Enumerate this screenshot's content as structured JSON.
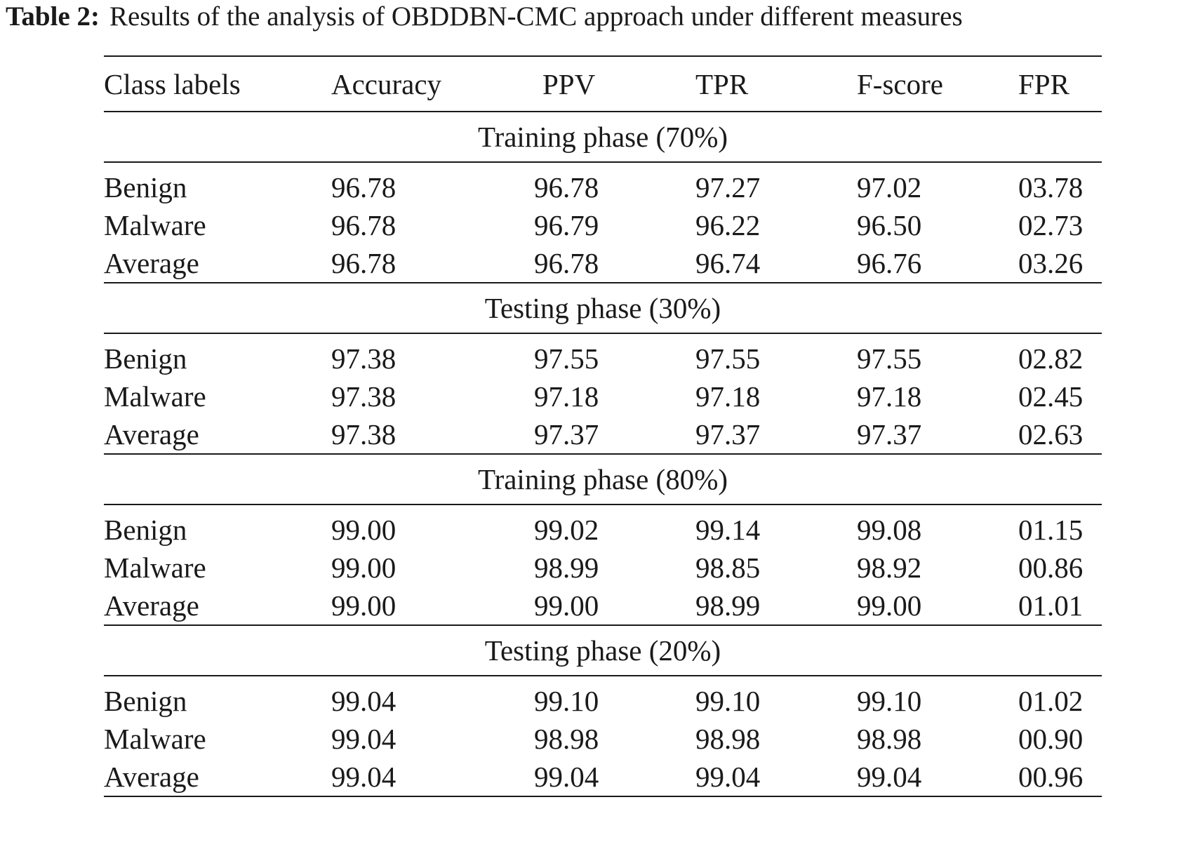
{
  "caption": {
    "label": "Table 2:",
    "text": "Results of the analysis of OBDDBN-CMC approach under different measures"
  },
  "table": {
    "headers": [
      "Class labels",
      "Accuracy",
      "PPV",
      "TPR",
      "F-score",
      "FPR"
    ],
    "sections": [
      {
        "title": "Training phase (70%)",
        "rows": [
          {
            "label": "Benign",
            "accuracy": "96.78",
            "ppv": "96.78",
            "tpr": "97.27",
            "fscore": "97.02",
            "fpr": "03.78"
          },
          {
            "label": "Malware",
            "accuracy": "96.78",
            "ppv": "96.79",
            "tpr": "96.22",
            "fscore": "96.50",
            "fpr": "02.73"
          },
          {
            "label": "Average",
            "accuracy": "96.78",
            "ppv": "96.78",
            "tpr": "96.74",
            "fscore": "96.76",
            "fpr": "03.26"
          }
        ]
      },
      {
        "title": "Testing phase (30%)",
        "rows": [
          {
            "label": "Benign",
            "accuracy": "97.38",
            "ppv": "97.55",
            "tpr": "97.55",
            "fscore": "97.55",
            "fpr": "02.82"
          },
          {
            "label": "Malware",
            "accuracy": "97.38",
            "ppv": "97.18",
            "tpr": "97.18",
            "fscore": "97.18",
            "fpr": "02.45"
          },
          {
            "label": "Average",
            "accuracy": "97.38",
            "ppv": "97.37",
            "tpr": "97.37",
            "fscore": "97.37",
            "fpr": "02.63"
          }
        ]
      },
      {
        "title": "Training phase (80%)",
        "rows": [
          {
            "label": "Benign",
            "accuracy": "99.00",
            "ppv": "99.02",
            "tpr": "99.14",
            "fscore": "99.08",
            "fpr": "01.15"
          },
          {
            "label": "Malware",
            "accuracy": "99.00",
            "ppv": "98.99",
            "tpr": "98.85",
            "fscore": "98.92",
            "fpr": "00.86"
          },
          {
            "label": "Average",
            "accuracy": "99.00",
            "ppv": "99.00",
            "tpr": "98.99",
            "fscore": "99.00",
            "fpr": "01.01"
          }
        ]
      },
      {
        "title": "Testing phase (20%)",
        "rows": [
          {
            "label": "Benign",
            "accuracy": "99.04",
            "ppv": "99.10",
            "tpr": "99.10",
            "fscore": "99.10",
            "fpr": "01.02"
          },
          {
            "label": "Malware",
            "accuracy": "99.04",
            "ppv": "98.98",
            "tpr": "98.98",
            "fscore": "98.98",
            "fpr": "00.90"
          },
          {
            "label": "Average",
            "accuracy": "99.04",
            "ppv": "99.04",
            "tpr": "99.04",
            "fscore": "99.04",
            "fpr": "00.96"
          }
        ]
      }
    ]
  }
}
